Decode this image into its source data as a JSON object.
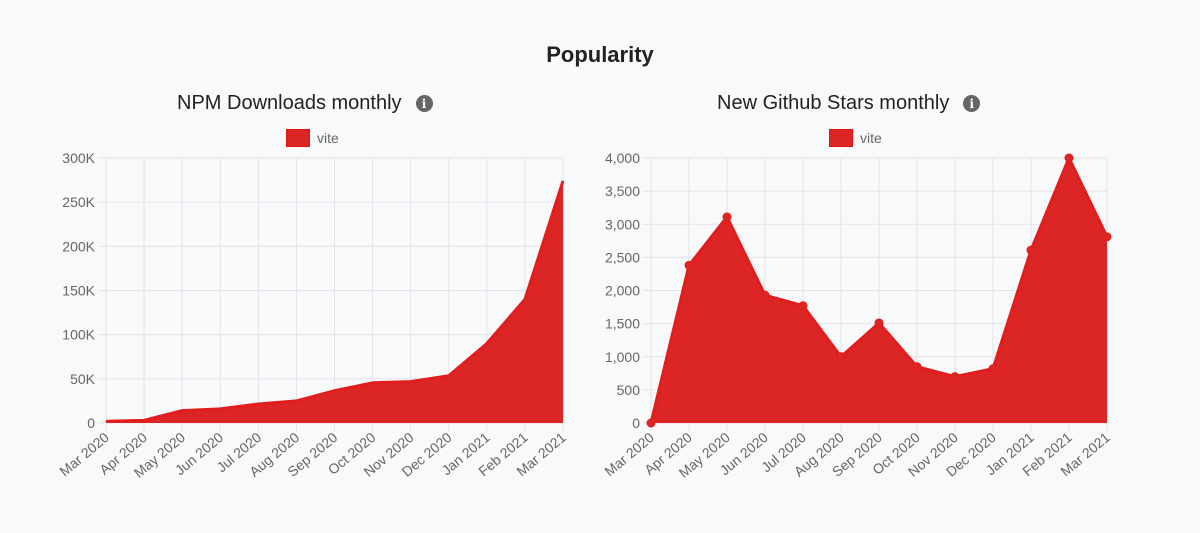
{
  "page": {
    "title": "Popularity"
  },
  "colors": {
    "series": "#dc2626",
    "grid": "#e2e3e6",
    "axis_text": "#666666"
  },
  "chart_data": [
    {
      "type": "area",
      "title": "NPM Downloads monthly",
      "info_icon": "info-icon",
      "legend": [
        "vite"
      ],
      "legend_position": "top",
      "xlabel": "",
      "ylabel": "",
      "x": [
        "Mar 2020",
        "Apr 2020",
        "May 2020",
        "Jun 2020",
        "Jul 2020",
        "Aug 2020",
        "Sep 2020",
        "Oct 2020",
        "Nov 2020",
        "Dec 2020",
        "Jan 2021",
        "Feb 2021",
        "Mar 2021"
      ],
      "series": [
        {
          "name": "vite",
          "values": [
            2000,
            3000,
            14000,
            16000,
            21500,
            25000,
            36500,
            45500,
            46800,
            53500,
            90000,
            140000,
            274000
          ]
        }
      ],
      "ylim": [
        0,
        300000
      ],
      "yticks": [
        0,
        50000,
        100000,
        150000,
        200000,
        250000,
        300000
      ],
      "ytick_labels": [
        "0",
        "50K",
        "100K",
        "150K",
        "200K",
        "250K",
        "300K"
      ],
      "grid": true,
      "points": false
    },
    {
      "type": "area",
      "title": "New Github Stars monthly",
      "info_icon": "info-icon",
      "legend": [
        "vite"
      ],
      "legend_position": "top",
      "xlabel": "",
      "ylabel": "",
      "x": [
        "Mar 2020",
        "Apr 2020",
        "May 2020",
        "Jun 2020",
        "Jul 2020",
        "Aug 2020",
        "Sep 2020",
        "Oct 2020",
        "Nov 2020",
        "Dec 2020",
        "Jan 2021",
        "Feb 2021",
        "Mar 2021"
      ],
      "series": [
        {
          "name": "vite",
          "values": [
            0,
            2380,
            3110,
            1930,
            1770,
            1000,
            1510,
            850,
            700,
            820,
            2610,
            4000,
            2810
          ]
        }
      ],
      "ylim": [
        0,
        4000
      ],
      "yticks": [
        0,
        500,
        1000,
        1500,
        2000,
        2500,
        3000,
        3500,
        4000
      ],
      "ytick_labels": [
        "0",
        "500",
        "1,000",
        "1,500",
        "2,000",
        "2,500",
        "3,000",
        "3,500",
        "4,000"
      ],
      "grid": true,
      "points": true
    }
  ]
}
